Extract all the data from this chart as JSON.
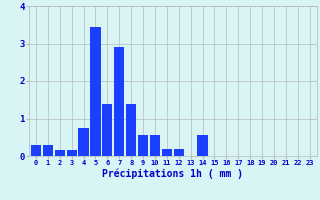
{
  "values": [
    0.3,
    0.3,
    0.15,
    0.15,
    0.75,
    3.45,
    1.4,
    2.9,
    1.4,
    0.55,
    0.55,
    0.2,
    0.2,
    0.0,
    0.55,
    0.0,
    0.0,
    0.0,
    0.0,
    0.0,
    0.0,
    0.0,
    0.0,
    0.0
  ],
  "categories": [
    0,
    1,
    2,
    3,
    4,
    5,
    6,
    7,
    8,
    9,
    10,
    11,
    12,
    13,
    14,
    15,
    16,
    17,
    18,
    19,
    20,
    21,
    22,
    23
  ],
  "bar_color": "#1a3fff",
  "background_color": "#d8f4f4",
  "grid_color": "#b8b8b8",
  "xlabel": "Précipitations 1h ( mm )",
  "tick_color": "#0000cc",
  "ylim": [
    0,
    4
  ],
  "yticks": [
    0,
    1,
    2,
    3,
    4
  ]
}
